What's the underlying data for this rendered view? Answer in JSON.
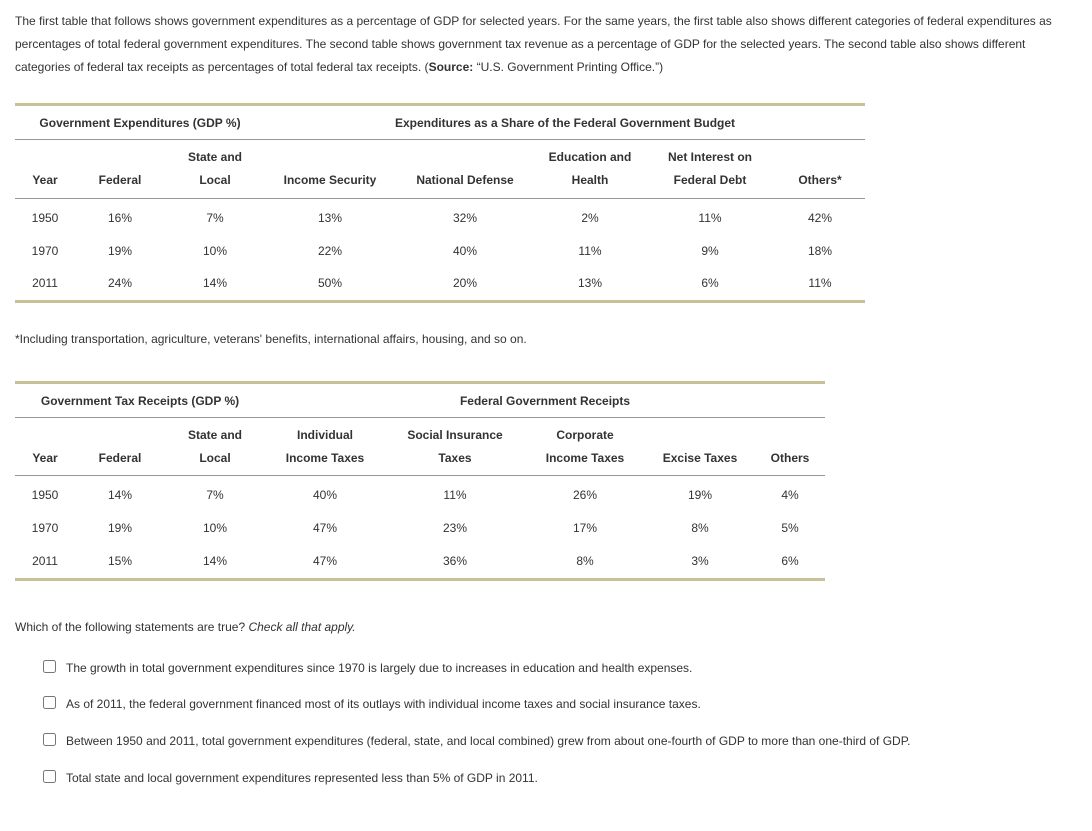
{
  "intro": {
    "text_before_source": "The first table that follows shows government expenditures as a percentage of GDP for selected years. For the same years, the first table also shows different categories of federal expenditures as percentages of total federal government expenditures. The second table shows government tax revenue as a percentage of GDP for the selected years. The second table also shows different categories of federal tax receipts as percentages of total federal tax receipts. (",
    "source_label": "Source:",
    "source_text": " “U.S. Government Printing Office.”)"
  },
  "table1": {
    "group_headers": {
      "g1": "Government Expenditures (GDP %)",
      "g2": "Expenditures as a Share of the Federal Government Budget"
    },
    "columns": {
      "year": "Year",
      "federal": "Federal",
      "state_local": "State and Local",
      "income_security": "Income Security",
      "national_defense": "National Defense",
      "edu_health": "Education and Health",
      "net_interest": "Net Interest on Federal Debt",
      "others": "Others*"
    },
    "rows": [
      {
        "year": "1950",
        "federal": "16%",
        "state_local": "7%",
        "income_security": "13%",
        "national_defense": "32%",
        "edu_health": "2%",
        "net_interest": "11%",
        "others": "42%"
      },
      {
        "year": "1970",
        "federal": "19%",
        "state_local": "10%",
        "income_security": "22%",
        "national_defense": "40%",
        "edu_health": "11%",
        "net_interest": "9%",
        "others": "18%"
      },
      {
        "year": "2011",
        "federal": "24%",
        "state_local": "14%",
        "income_security": "50%",
        "national_defense": "20%",
        "edu_health": "13%",
        "net_interest": "6%",
        "others": "11%"
      }
    ],
    "col_widths": {
      "year": "60",
      "federal": "90",
      "state_local": "100",
      "income_security": "130",
      "national_defense": "140",
      "edu_health": "110",
      "net_interest": "130",
      "others": "90"
    }
  },
  "footnote": "*Including transportation, agriculture, veterans' benefits, international affairs, housing, and so on.",
  "table2": {
    "group_headers": {
      "g1": "Government Tax Receipts (GDP %)",
      "g2": "Federal Government Receipts"
    },
    "columns": {
      "year": "Year",
      "federal": "Federal",
      "state_local": "State and Local",
      "indiv_income": "Individual Income Taxes",
      "social_ins": "Social Insurance Taxes",
      "corp_income": "Corporate Income Taxes",
      "excise": "Excise Taxes",
      "others": "Others"
    },
    "rows": [
      {
        "year": "1950",
        "federal": "14%",
        "state_local": "7%",
        "indiv_income": "40%",
        "social_ins": "11%",
        "corp_income": "26%",
        "excise": "19%",
        "others": "4%"
      },
      {
        "year": "1970",
        "federal": "19%",
        "state_local": "10%",
        "indiv_income": "47%",
        "social_ins": "23%",
        "corp_income": "17%",
        "excise": "8%",
        "others": "5%"
      },
      {
        "year": "2011",
        "federal": "15%",
        "state_local": "14%",
        "indiv_income": "47%",
        "social_ins": "36%",
        "corp_income": "8%",
        "excise": "3%",
        "others": "6%"
      }
    ],
    "col_widths": {
      "year": "60",
      "federal": "90",
      "state_local": "100",
      "indiv_income": "120",
      "social_ins": "140",
      "corp_income": "120",
      "excise": "110",
      "others": "70"
    }
  },
  "question": {
    "prompt": "Which of the following statements are true? ",
    "instruction": "Check all that apply.",
    "options": [
      "The growth in total government expenditures since 1970 is largely due to increases in education and health expenses.",
      "As of 2011, the federal government financed most of its outlays with individual income taxes and social insurance taxes.",
      "Between 1950 and 2011, total government expenditures (federal, state, and local combined) grew from about one-fourth of GDP to more than one-third of GDP.",
      "Total state and local government expenditures represented less than 5% of GDP in 2011."
    ]
  },
  "style": {
    "rule_color": "#c8c097",
    "text_color": "#333333",
    "background_color": "#ffffff",
    "font_family": "Verdana, Arial, sans-serif",
    "base_fontsize": 12
  }
}
